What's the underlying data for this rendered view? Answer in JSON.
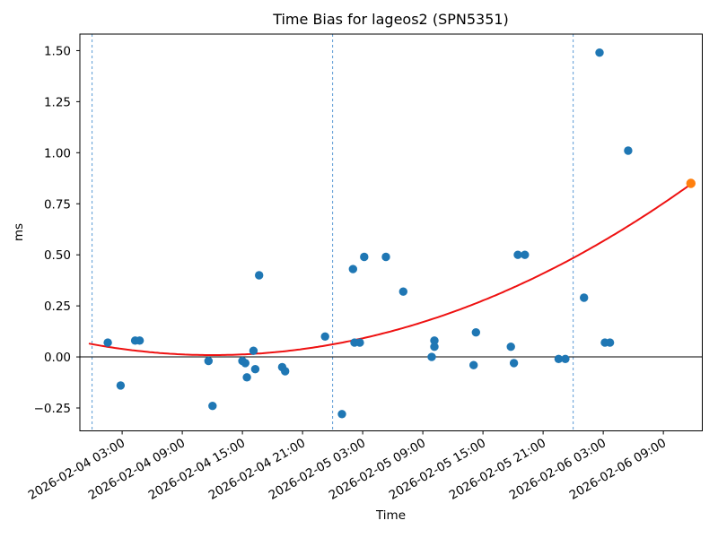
{
  "chart_data": {
    "type": "scatter",
    "title": "Time Bias for lageos2 (SPN5351)",
    "xlabel": "Time",
    "ylabel": "ms",
    "grid": false,
    "xlim": [
      "2026-02-03 22:47",
      "2026-02-06 12:53"
    ],
    "ylim": [
      -0.362,
      1.581
    ],
    "x_tick_labels": [
      "2026-02-04 03:00",
      "2026-02-04 09:00",
      "2026-02-04 15:00",
      "2026-02-04 21:00",
      "2026-02-05 03:00",
      "2026-02-05 09:00",
      "2026-02-05 15:00",
      "2026-02-05 21:00",
      "2026-02-06 03:00",
      "2026-02-06 09:00"
    ],
    "y_tick_values": [
      -0.25,
      0.0,
      0.25,
      0.5,
      0.75,
      1.0,
      1.25,
      1.5
    ],
    "y_tick_labels": [
      "−0.25",
      "0.00",
      "0.25",
      "0.50",
      "0.75",
      "1.00",
      "1.25",
      "1.50"
    ],
    "zero_line": {
      "y": 0.0,
      "color": "#000000"
    },
    "day_boundary_lines": {
      "style": "dashed",
      "color": "#5b9bd5",
      "times": [
        "2026-02-04 00:00",
        "2026-02-05 00:00",
        "2026-02-06 00:00"
      ]
    },
    "series": [
      {
        "name": "time-bias-observations",
        "marker": "circle",
        "color": "#1f77b4",
        "points": [
          [
            "2026-02-04 01:34",
            0.07
          ],
          [
            "2026-02-04 02:51",
            -0.14
          ],
          [
            "2026-02-04 04:18",
            0.08
          ],
          [
            "2026-02-04 04:45",
            0.08
          ],
          [
            "2026-02-04 11:37",
            -0.02
          ],
          [
            "2026-02-04 12:01",
            -0.24
          ],
          [
            "2026-02-04 15:00",
            -0.02
          ],
          [
            "2026-02-04 15:17",
            -0.03
          ],
          [
            "2026-02-04 15:27",
            -0.1
          ],
          [
            "2026-02-04 16:06",
            0.03
          ],
          [
            "2026-02-04 16:17",
            -0.06
          ],
          [
            "2026-02-04 16:40",
            0.4
          ],
          [
            "2026-02-04 18:58",
            -0.05
          ],
          [
            "2026-02-04 19:16",
            -0.07
          ],
          [
            "2026-02-04 23:15",
            0.1
          ],
          [
            "2026-02-05 00:56",
            -0.28
          ],
          [
            "2026-02-05 02:02",
            0.43
          ],
          [
            "2026-02-05 02:11",
            0.07
          ],
          [
            "2026-02-05 02:43",
            0.07
          ],
          [
            "2026-02-05 03:09",
            0.49
          ],
          [
            "2026-02-05 05:19",
            0.49
          ],
          [
            "2026-02-05 07:03",
            0.32
          ],
          [
            "2026-02-05 09:53",
            0.0
          ],
          [
            "2026-02-05 10:09",
            0.08
          ],
          [
            "2026-02-05 10:09",
            0.05
          ],
          [
            "2026-02-05 14:04",
            -0.04
          ],
          [
            "2026-02-05 14:18",
            0.12
          ],
          [
            "2026-02-05 17:47",
            0.05
          ],
          [
            "2026-02-05 18:05",
            -0.03
          ],
          [
            "2026-02-05 18:29",
            0.5
          ],
          [
            "2026-02-05 19:11",
            0.5
          ],
          [
            "2026-02-05 22:33",
            -0.01
          ],
          [
            "2026-02-05 23:13",
            -0.01
          ],
          [
            "2026-02-06 01:05",
            0.29
          ],
          [
            "2026-02-06 02:38",
            1.49
          ],
          [
            "2026-02-06 03:10",
            0.07
          ],
          [
            "2026-02-06 03:40",
            0.07
          ],
          [
            "2026-02-06 05:29",
            1.01
          ]
        ]
      },
      {
        "name": "latest-observation",
        "marker": "circle",
        "color": "#ff7f0e",
        "points": [
          [
            "2026-02-06 11:45",
            0.85
          ]
        ]
      }
    ],
    "fit_curve": {
      "name": "quadratic-fit",
      "color": "#ee1111",
      "a_per_hour2": 0.000368,
      "vertex_time": "2026-02-04 12:03",
      "vertex_value": 0.009,
      "start": "2026-02-03 23:45",
      "end": "2026-02-06 11:45"
    }
  }
}
